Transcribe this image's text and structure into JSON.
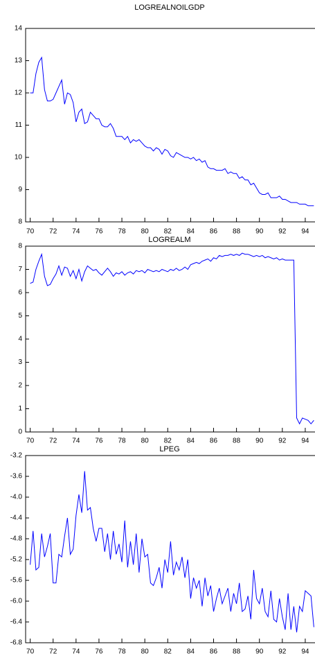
{
  "chart_data": [
    {
      "type": "line",
      "title": "LOGREALNOILGDP",
      "color": "#0000ff",
      "xlim": [
        69.6,
        94.85
      ],
      "ylim": [
        8,
        14
      ],
      "xticks": [
        70,
        72,
        74,
        76,
        78,
        80,
        82,
        84,
        86,
        88,
        90,
        92,
        94
      ],
      "yticks": [
        8,
        9,
        10,
        11,
        12,
        13,
        14
      ],
      "x": [
        70,
        70.25,
        70.5,
        70.75,
        71,
        71.25,
        71.5,
        71.75,
        72,
        72.25,
        72.5,
        72.75,
        73,
        73.25,
        73.5,
        73.75,
        74,
        74.25,
        74.5,
        74.75,
        75,
        75.25,
        75.5,
        75.75,
        76,
        76.25,
        76.5,
        76.75,
        77,
        77.25,
        77.5,
        77.75,
        78,
        78.25,
        78.5,
        78.75,
        79,
        79.25,
        79.5,
        79.75,
        80,
        80.25,
        80.5,
        80.75,
        81,
        81.25,
        81.5,
        81.75,
        82,
        82.25,
        82.5,
        82.75,
        83,
        83.25,
        83.5,
        83.75,
        84,
        84.25,
        84.5,
        84.75,
        85,
        85.25,
        85.5,
        85.75,
        86,
        86.25,
        86.5,
        86.75,
        87,
        87.25,
        87.5,
        87.75,
        88,
        88.25,
        88.5,
        88.75,
        89,
        89.25,
        89.5,
        89.75,
        90,
        90.25,
        90.5,
        90.75,
        91,
        91.25,
        91.5,
        91.75,
        92,
        92.25,
        92.5,
        92.75,
        93,
        93.25,
        93.5,
        93.75,
        94,
        94.25,
        94.5,
        94.75
      ],
      "values": [
        12.0,
        12.0,
        12.6,
        12.95,
        13.1,
        12.1,
        11.75,
        11.75,
        11.8,
        12.0,
        12.2,
        12.4,
        11.65,
        12.0,
        11.95,
        11.7,
        11.1,
        11.4,
        11.5,
        11.05,
        11.1,
        11.4,
        11.3,
        11.2,
        11.2,
        11.0,
        10.95,
        10.95,
        11.05,
        10.9,
        10.65,
        10.65,
        10.65,
        10.55,
        10.65,
        10.45,
        10.55,
        10.5,
        10.55,
        10.45,
        10.35,
        10.3,
        10.3,
        10.2,
        10.3,
        10.25,
        10.1,
        10.25,
        10.2,
        10.05,
        10.0,
        10.15,
        10.1,
        10.05,
        10.0,
        10.0,
        9.95,
        10.0,
        9.9,
        9.95,
        9.85,
        9.9,
        9.7,
        9.65,
        9.65,
        9.6,
        9.6,
        9.6,
        9.65,
        9.5,
        9.55,
        9.5,
        9.5,
        9.35,
        9.4,
        9.3,
        9.3,
        9.15,
        9.2,
        9.05,
        8.9,
        8.85,
        8.85,
        8.9,
        8.75,
        8.75,
        8.75,
        8.8,
        8.7,
        8.7,
        8.65,
        8.6,
        8.6,
        8.6,
        8.55,
        8.55,
        8.55,
        8.5,
        8.5,
        8.5
      ]
    },
    {
      "type": "line",
      "title": "LOGREALM",
      "color": "#0000ff",
      "xlim": [
        69.6,
        94.85
      ],
      "ylim": [
        0,
        8
      ],
      "xticks": [
        70,
        72,
        74,
        76,
        78,
        80,
        82,
        84,
        86,
        88,
        90,
        92,
        94
      ],
      "yticks": [
        0,
        1,
        2,
        3,
        4,
        5,
        6,
        7,
        8
      ],
      "x": [
        70,
        70.25,
        70.5,
        70.75,
        71,
        71.25,
        71.5,
        71.75,
        72,
        72.25,
        72.5,
        72.75,
        73,
        73.25,
        73.5,
        73.75,
        74,
        74.25,
        74.5,
        74.75,
        75,
        75.25,
        75.5,
        75.75,
        76,
        76.25,
        76.5,
        76.75,
        77,
        77.25,
        77.5,
        77.75,
        78,
        78.25,
        78.5,
        78.75,
        79,
        79.25,
        79.5,
        79.75,
        80,
        80.25,
        80.5,
        80.75,
        81,
        81.25,
        81.5,
        81.75,
        82,
        82.25,
        82.5,
        82.75,
        83,
        83.25,
        83.5,
        83.75,
        84,
        84.25,
        84.5,
        84.75,
        85,
        85.25,
        85.5,
        85.75,
        86,
        86.25,
        86.5,
        86.75,
        87,
        87.25,
        87.5,
        87.75,
        88,
        88.25,
        88.5,
        88.75,
        89,
        89.25,
        89.5,
        89.75,
        90,
        90.25,
        90.5,
        90.75,
        91,
        91.25,
        91.5,
        91.75,
        92,
        92.25,
        92.5,
        92.75,
        93,
        93.25,
        93.5,
        93.75,
        94,
        94.25,
        94.5,
        94.75
      ],
      "values": [
        6.4,
        6.45,
        7.0,
        7.35,
        7.65,
        6.7,
        6.3,
        6.35,
        6.6,
        6.8,
        7.15,
        6.75,
        7.1,
        7.05,
        6.7,
        6.95,
        6.6,
        7.0,
        6.5,
        6.9,
        7.15,
        7.05,
        6.95,
        7.0,
        6.85,
        6.75,
        6.9,
        7.05,
        6.9,
        6.7,
        6.85,
        6.8,
        6.9,
        6.75,
        6.85,
        6.9,
        6.8,
        6.95,
        6.9,
        6.95,
        6.85,
        7.0,
        6.95,
        6.9,
        6.95,
        6.9,
        7.0,
        6.95,
        6.9,
        7.0,
        6.95,
        7.05,
        6.95,
        7.0,
        7.1,
        7.0,
        7.2,
        7.25,
        7.3,
        7.25,
        7.35,
        7.4,
        7.45,
        7.35,
        7.5,
        7.45,
        7.6,
        7.55,
        7.6,
        7.6,
        7.65,
        7.6,
        7.65,
        7.6,
        7.7,
        7.65,
        7.65,
        7.6,
        7.55,
        7.6,
        7.55,
        7.6,
        7.5,
        7.55,
        7.5,
        7.45,
        7.5,
        7.4,
        7.45,
        7.4,
        7.4,
        7.4,
        7.4,
        0.6,
        0.35,
        0.6,
        0.55,
        0.5,
        0.35,
        0.5
      ]
    },
    {
      "type": "line",
      "title": "LPEG",
      "color": "#0000ff",
      "xlim": [
        69.6,
        94.85
      ],
      "ylim": [
        -6.8,
        -3.2
      ],
      "xticks": [
        70,
        72,
        74,
        76,
        78,
        80,
        82,
        84,
        86,
        88,
        90,
        92,
        94
      ],
      "yticks": [
        -6.8,
        -6.4,
        {
          "value": -6,
          "label": "-6.0"
        },
        -5.6,
        -5.2,
        -4.8,
        -4.4,
        {
          "value": -4,
          "label": "-4.0"
        },
        -3.6,
        -3.2
      ],
      "x": [
        70,
        70.25,
        70.5,
        70.75,
        71,
        71.25,
        71.5,
        71.75,
        72,
        72.25,
        72.5,
        72.75,
        73,
        73.25,
        73.5,
        73.75,
        74,
        74.25,
        74.5,
        74.75,
        75,
        75.25,
        75.5,
        75.75,
        76,
        76.25,
        76.5,
        76.75,
        77,
        77.25,
        77.5,
        77.75,
        78,
        78.25,
        78.5,
        78.75,
        79,
        79.25,
        79.5,
        79.75,
        80,
        80.25,
        80.5,
        80.75,
        81,
        81.25,
        81.5,
        81.75,
        82,
        82.25,
        82.5,
        82.75,
        83,
        83.25,
        83.5,
        83.75,
        84,
        84.25,
        84.5,
        84.75,
        85,
        85.25,
        85.5,
        85.75,
        86,
        86.25,
        86.5,
        86.75,
        87,
        87.25,
        87.5,
        87.75,
        88,
        88.25,
        88.5,
        88.75,
        89,
        89.25,
        89.5,
        89.75,
        90,
        90.25,
        90.5,
        90.75,
        91,
        91.25,
        91.5,
        91.75,
        92,
        92.25,
        92.5,
        92.75,
        93,
        93.25,
        93.5,
        93.75,
        94,
        94.25,
        94.5,
        94.75
      ],
      "values": [
        -5.3,
        -4.65,
        -5.4,
        -5.35,
        -4.7,
        -5.15,
        -4.95,
        -4.7,
        -5.65,
        -5.65,
        -5.1,
        -5.15,
        -4.75,
        -4.4,
        -5.1,
        -5.0,
        -4.35,
        -3.95,
        -4.3,
        -3.5,
        -4.25,
        -4.2,
        -4.6,
        -4.85,
        -4.6,
        -4.6,
        -5.05,
        -4.7,
        -5.2,
        -4.65,
        -5.1,
        -4.9,
        -5.25,
        -4.45,
        -5.35,
        -4.85,
        -5.3,
        -4.7,
        -5.45,
        -4.8,
        -5.15,
        -5.1,
        -5.65,
        -5.7,
        -5.55,
        -5.35,
        -5.75,
        -5.2,
        -5.45,
        -4.85,
        -5.5,
        -5.25,
        -5.4,
        -5.15,
        -5.55,
        -5.2,
        -5.95,
        -5.55,
        -5.75,
        -5.6,
        -6.1,
        -5.55,
        -5.9,
        -5.7,
        -6.2,
        -5.95,
        -5.75,
        -6.05,
        -5.9,
        -5.75,
        -6.2,
        -5.85,
        -6.05,
        -5.65,
        -6.2,
        -6.15,
        -5.9,
        -6.35,
        -5.4,
        -5.95,
        -6.05,
        -5.75,
        -6.2,
        -6.3,
        -5.8,
        -6.35,
        -6.4,
        -5.95,
        -6.3,
        -6.55,
        -5.85,
        -6.55,
        -6.1,
        -6.6,
        -6.1,
        -6.2,
        -5.8,
        -5.85,
        -5.9,
        -6.5
      ]
    }
  ]
}
